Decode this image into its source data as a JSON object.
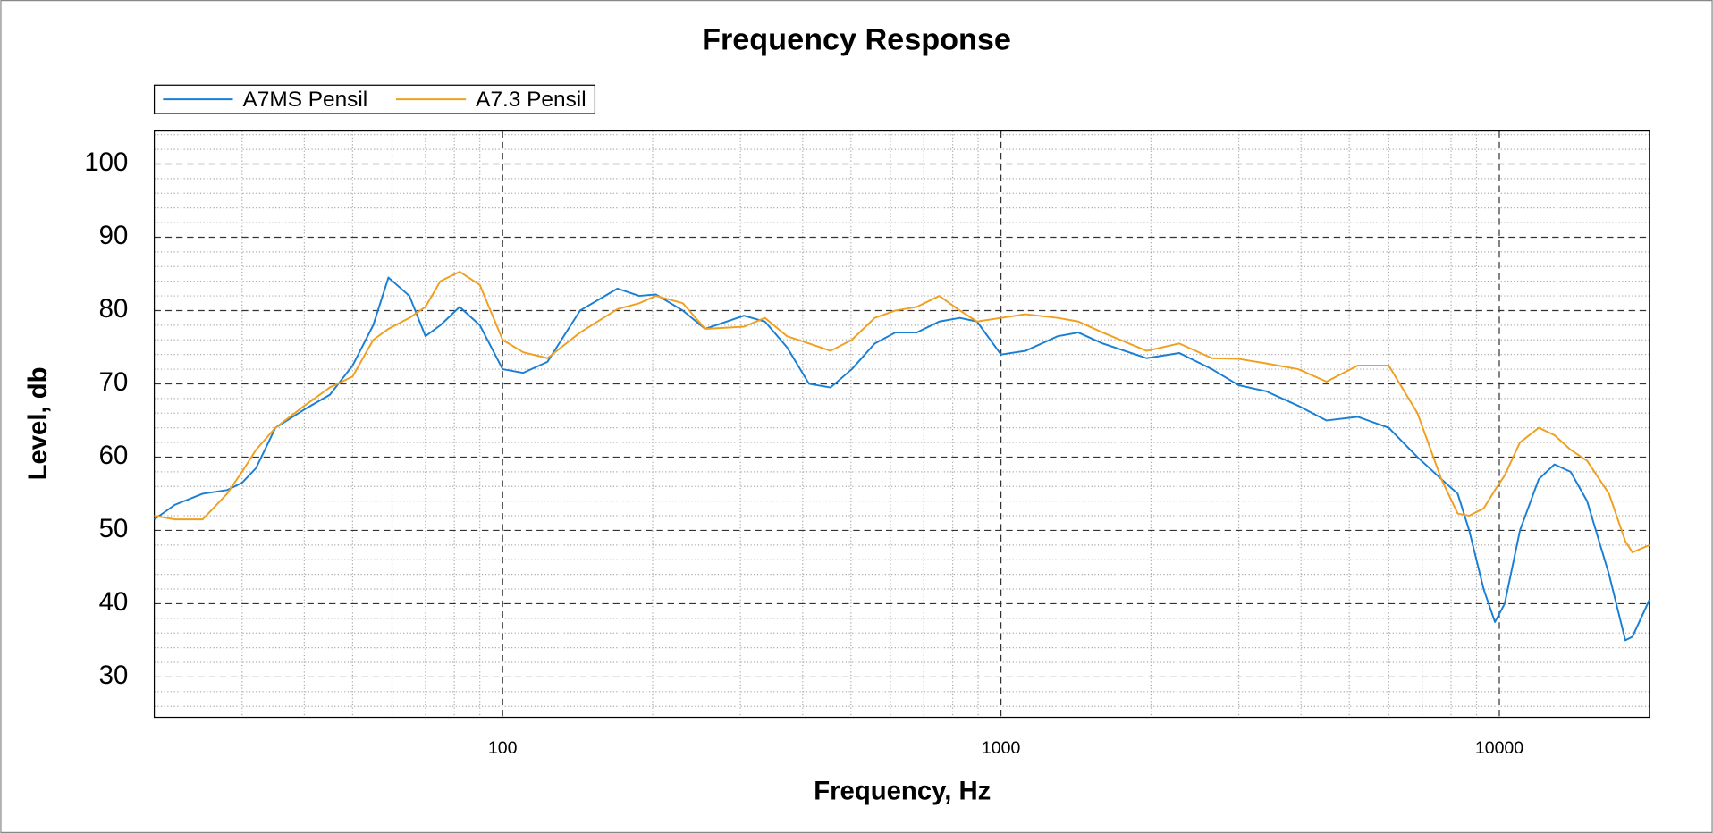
{
  "chart_data": {
    "type": "line",
    "title": "Frequency Response",
    "x_label": "Frequency, Hz",
    "y_label": "Level, db",
    "x_log": true,
    "grid": true,
    "minor_grid": true,
    "legend": "top-left",
    "xlim": [
      20,
      20000
    ],
    "ylim": [
      24.5,
      104.5
    ],
    "xticks": [
      100,
      1000,
      10000
    ],
    "yticks": [
      30,
      40,
      50,
      60,
      70,
      80,
      90,
      100
    ],
    "x": [
      20,
      22,
      25,
      28,
      30,
      32,
      35,
      40,
      45,
      50,
      55,
      59,
      65,
      70,
      75,
      82,
      90,
      100,
      110,
      123,
      143,
      170,
      188,
      203,
      230,
      255,
      305,
      336,
      372,
      412,
      455,
      502,
      558,
      614,
      678,
      752,
      827,
      895,
      1000,
      1120,
      1300,
      1430,
      1600,
      1960,
      2280,
      2650,
      3000,
      3400,
      3950,
      4500,
      5200,
      6000,
      6850,
      7650,
      8250,
      8700,
      9300,
      9800,
      10250,
      11000,
      12000,
      12900,
      13900,
      15000,
      16600,
      17900,
      18500,
      20000
    ],
    "series": [
      {
        "name": "A7MS Pensil",
        "color": "#1a7fd4",
        "values": [
          51.5,
          53.5,
          55,
          55.5,
          56.5,
          58.5,
          64,
          66.5,
          68.5,
          72.5,
          78,
          84.5,
          82,
          76.5,
          78,
          80.5,
          78,
          72,
          71.5,
          73,
          80,
          83,
          82,
          82.2,
          80,
          77.5,
          79.3,
          78.5,
          75,
          70,
          69.5,
          72,
          75.5,
          77,
          77,
          78.5,
          79,
          78.5,
          74,
          74.5,
          76.5,
          77,
          75.5,
          73.5,
          74.2,
          72,
          69.8,
          69,
          67,
          65,
          65.5,
          64,
          60,
          57,
          55,
          50,
          42,
          37.5,
          40,
          50,
          57,
          59,
          58,
          54,
          44,
          35,
          35.5,
          40.5
        ]
      },
      {
        "name": "A7.3 Pensil",
        "color": "#f0a020",
        "values": [
          52,
          51.5,
          51.5,
          55,
          58,
          61,
          64,
          67,
          69.5,
          71,
          76,
          77.5,
          79,
          80.5,
          84,
          85.3,
          83.5,
          76,
          74.3,
          73.5,
          77,
          80.2,
          81,
          82,
          81,
          77.5,
          77.8,
          79,
          76.5,
          75.5,
          74.5,
          76,
          79,
          80,
          80.5,
          82,
          80,
          78.5,
          79,
          79.5,
          79,
          78.5,
          77,
          74.5,
          75.5,
          73.5,
          73.4,
          72.8,
          72,
          70.3,
          72.5,
          72.5,
          66,
          57,
          52.3,
          52,
          53,
          55.5,
          57.5,
          62,
          64,
          63,
          61,
          59.5,
          55,
          48.5,
          47,
          48
        ]
      }
    ]
  }
}
